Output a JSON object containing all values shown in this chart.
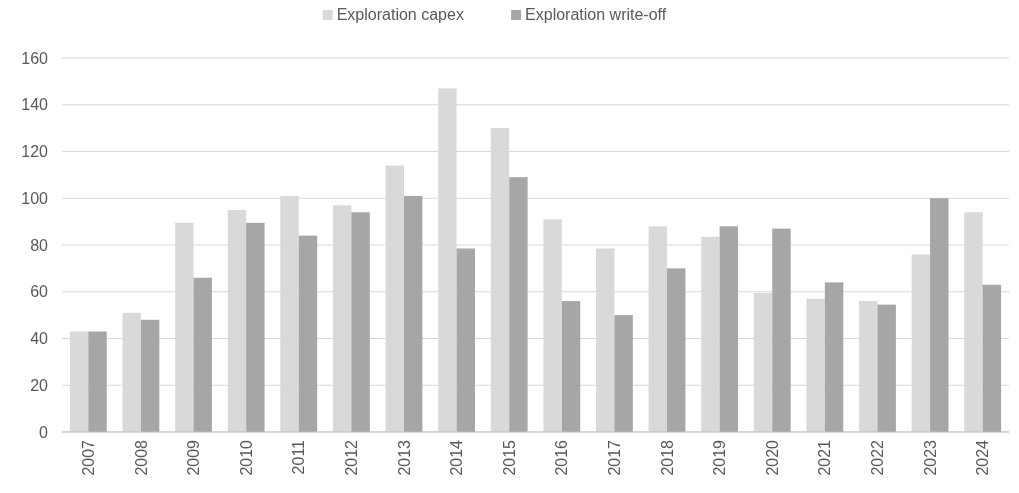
{
  "chart_data": {
    "type": "bar",
    "categories": [
      "2007",
      "2008",
      "2009",
      "2010",
      "2011",
      "2012",
      "2013",
      "2014",
      "2015",
      "2016",
      "2017",
      "2018",
      "2019",
      "2020",
      "2021",
      "2022",
      "2023",
      "2024"
    ],
    "series": [
      {
        "name": "Exploration capex",
        "color": "#d9d9d9",
        "values": [
          43,
          51,
          89.5,
          95,
          101,
          97,
          114,
          147,
          130,
          91,
          78.5,
          88,
          83.5,
          59.5,
          57,
          56,
          76,
          94
        ]
      },
      {
        "name": "Exploration write-off",
        "color": "#a6a6a6",
        "values": [
          43,
          48,
          66,
          89.5,
          84,
          94,
          101,
          78.5,
          109,
          56,
          50,
          70,
          88,
          87,
          64,
          54.5,
          100,
          63
        ]
      }
    ],
    "ylim": [
      0,
      160
    ],
    "yticks": [
      0,
      20,
      40,
      60,
      80,
      100,
      120,
      140,
      160
    ],
    "grid": "y",
    "legend": "top"
  }
}
